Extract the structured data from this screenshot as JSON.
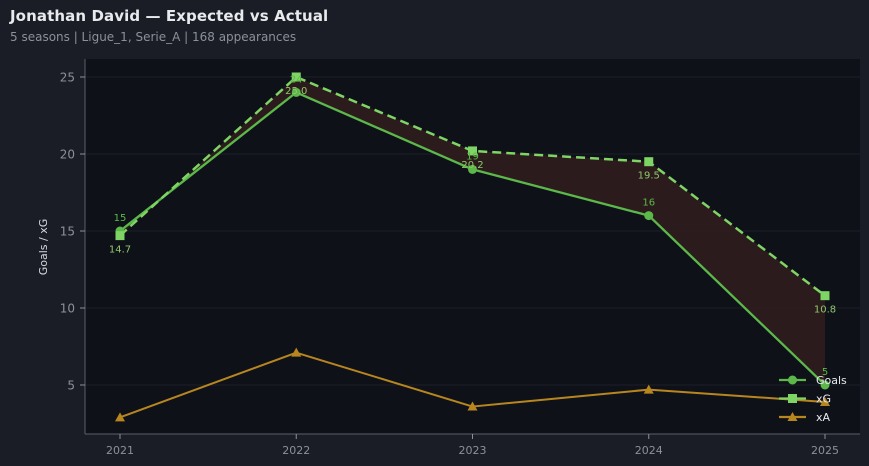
{
  "header": {
    "title": "Jonathan David — Expected vs Actual",
    "subtitle": "5 seasons | Ligue_1, Serie_A | 168 appearances"
  },
  "colors": {
    "background": "#1a1d25",
    "plot_background": "#0e1118",
    "goals": "#5cb84a",
    "xg": "#7ed464",
    "xa": "#b8861f",
    "fill_between": "#2e1c1e",
    "axis": "#5a5f6a",
    "text_muted": "#8b909a"
  },
  "chart_data": {
    "type": "line",
    "title": "Jonathan David — Expected vs Actual",
    "subtitle": "5 seasons | Ligue_1, Serie_A | 168 appearances",
    "xlabel": "",
    "ylabel": "Goals / xG",
    "x": [
      "2021",
      "2022",
      "2023",
      "2024",
      "2025"
    ],
    "yticks": [
      5,
      10,
      15,
      20,
      25
    ],
    "ylim": [
      2,
      26.2
    ],
    "grid": true,
    "legend_position": "lower right",
    "series": [
      {
        "name": "Goals",
        "values": [
          15,
          24,
          19,
          16,
          5
        ],
        "marker": "circle",
        "style": "solid",
        "labels": [
          "15",
          "24",
          "19",
          "16",
          "5"
        ]
      },
      {
        "name": "xG",
        "values": [
          14.7,
          25.0,
          20.2,
          19.5,
          10.8
        ],
        "marker": "square",
        "style": "dashed",
        "labels": [
          "14.7",
          "25.0",
          "20.2",
          "19.5",
          "10.8"
        ]
      },
      {
        "name": "xA",
        "values": [
          2.9,
          7.1,
          3.6,
          4.7,
          3.9
        ],
        "marker": "triangle",
        "style": "solid"
      }
    ],
    "annotations": [
      "Shaded region between Goals and xG"
    ]
  },
  "legend": {
    "items": [
      {
        "label": "Goals"
      },
      {
        "label": "xG"
      },
      {
        "label": "xA"
      }
    ]
  }
}
